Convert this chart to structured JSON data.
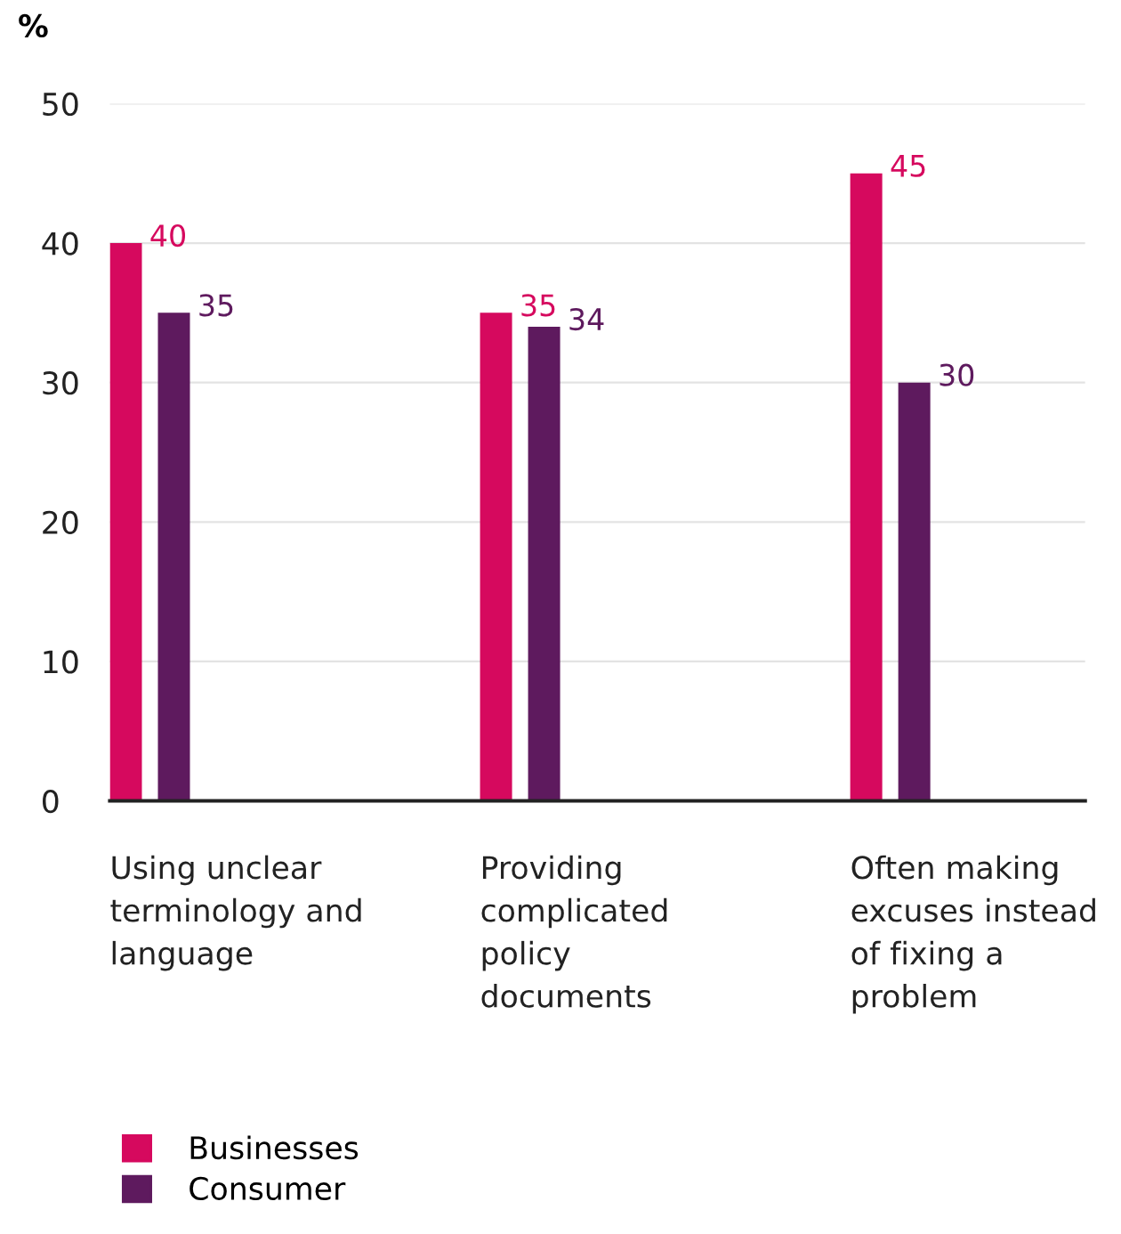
{
  "chart_data": {
    "type": "bar",
    "ylabel": "%",
    "categories": [
      "Using unclear\nterminology and\nlanguage",
      "Providing\ncomplicated\npolicy\ndocuments",
      "Often making\nexcuses instead\nof fixing a\nproblem"
    ],
    "series": [
      {
        "name": "Businesses",
        "color": "#d6095e",
        "values": [
          40,
          35,
          45
        ]
      },
      {
        "name": "Consumer",
        "color": "#5e1a5e",
        "values": [
          35,
          34,
          30
        ]
      }
    ],
    "ylim": [
      0,
      50
    ],
    "yticks": [
      0,
      10,
      20,
      30,
      40,
      50
    ],
    "grid": "y",
    "legend": "bottom left",
    "data_labels": true
  }
}
